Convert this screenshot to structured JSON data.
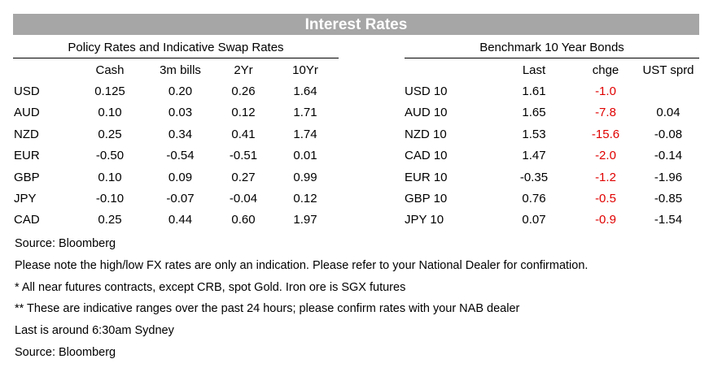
{
  "banner": "Interest Rates",
  "policy": {
    "title": "Policy Rates and Indicative Swap Rates",
    "columns": [
      "",
      "Cash",
      "3m bills",
      "2Yr",
      "10Yr"
    ],
    "rows": [
      [
        "USD",
        "0.125",
        "0.20",
        "0.26",
        "1.64"
      ],
      [
        "AUD",
        "0.10",
        "0.03",
        "0.12",
        "1.71"
      ],
      [
        "NZD",
        "0.25",
        "0.34",
        "0.41",
        "1.74"
      ],
      [
        "EUR",
        "-0.50",
        "-0.54",
        "-0.51",
        "0.01"
      ],
      [
        "GBP",
        "0.10",
        "0.09",
        "0.27",
        "0.99"
      ],
      [
        "JPY",
        "-0.10",
        "-0.07",
        "-0.04",
        "0.12"
      ],
      [
        "CAD",
        "0.25",
        "0.44",
        "0.60",
        "1.97"
      ]
    ]
  },
  "bonds": {
    "title": "Benchmark 10 Year Bonds",
    "columns": [
      "",
      "Last",
      "chge",
      "UST sprd"
    ],
    "rows": [
      [
        "USD 10",
        "1.61",
        "-1.0",
        ""
      ],
      [
        "AUD 10",
        "1.65",
        "-7.8",
        "0.04"
      ],
      [
        "NZD 10",
        "1.53",
        "-15.6",
        "-0.08"
      ],
      [
        "CAD 10",
        "1.47",
        "-2.0",
        "-0.14"
      ],
      [
        "EUR 10",
        "-0.35",
        "-1.2",
        "-1.96"
      ],
      [
        "GBP 10",
        "0.76",
        "-0.5",
        "-0.85"
      ],
      [
        "JPY 10",
        "0.07",
        "-0.9",
        "-1.54"
      ]
    ],
    "change_color": "#e00000"
  },
  "notes": [
    "Source: Bloomberg",
    "Please note the high/low FX rates are only an indication. Please refer to your National Dealer for confirmation.",
    "* All near futures contracts, except CRB, spot Gold.  Iron ore is SGX futures",
    "** These are indicative ranges over the past 24 hours; please confirm rates with your NAB dealer",
    "Last is around 6:30am Sydney",
    "Source: Bloomberg"
  ]
}
